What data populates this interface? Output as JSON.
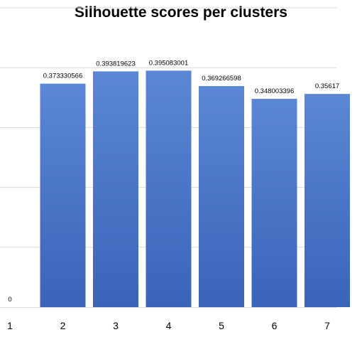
{
  "chart_data": {
    "type": "bar",
    "title": "Silhouette scores per clusters",
    "categories": [
      "1",
      "2",
      "3",
      "4",
      "5",
      "6",
      "7"
    ],
    "values": [
      0,
      0.373330566,
      0.393819623,
      0.395083001,
      0.369266598,
      0.348003396,
      0.35617
    ],
    "data_labels": [
      "0",
      "0.373330566",
      "0.393819623",
      "0.395083001",
      "0.369266598",
      "0.348003396",
      "0.35617"
    ],
    "xlabel": "",
    "ylabel": "",
    "ylim": [
      0,
      0.45
    ],
    "grid": true,
    "bar_color": "#4472C4",
    "grid_color": "#d9d9d9"
  }
}
